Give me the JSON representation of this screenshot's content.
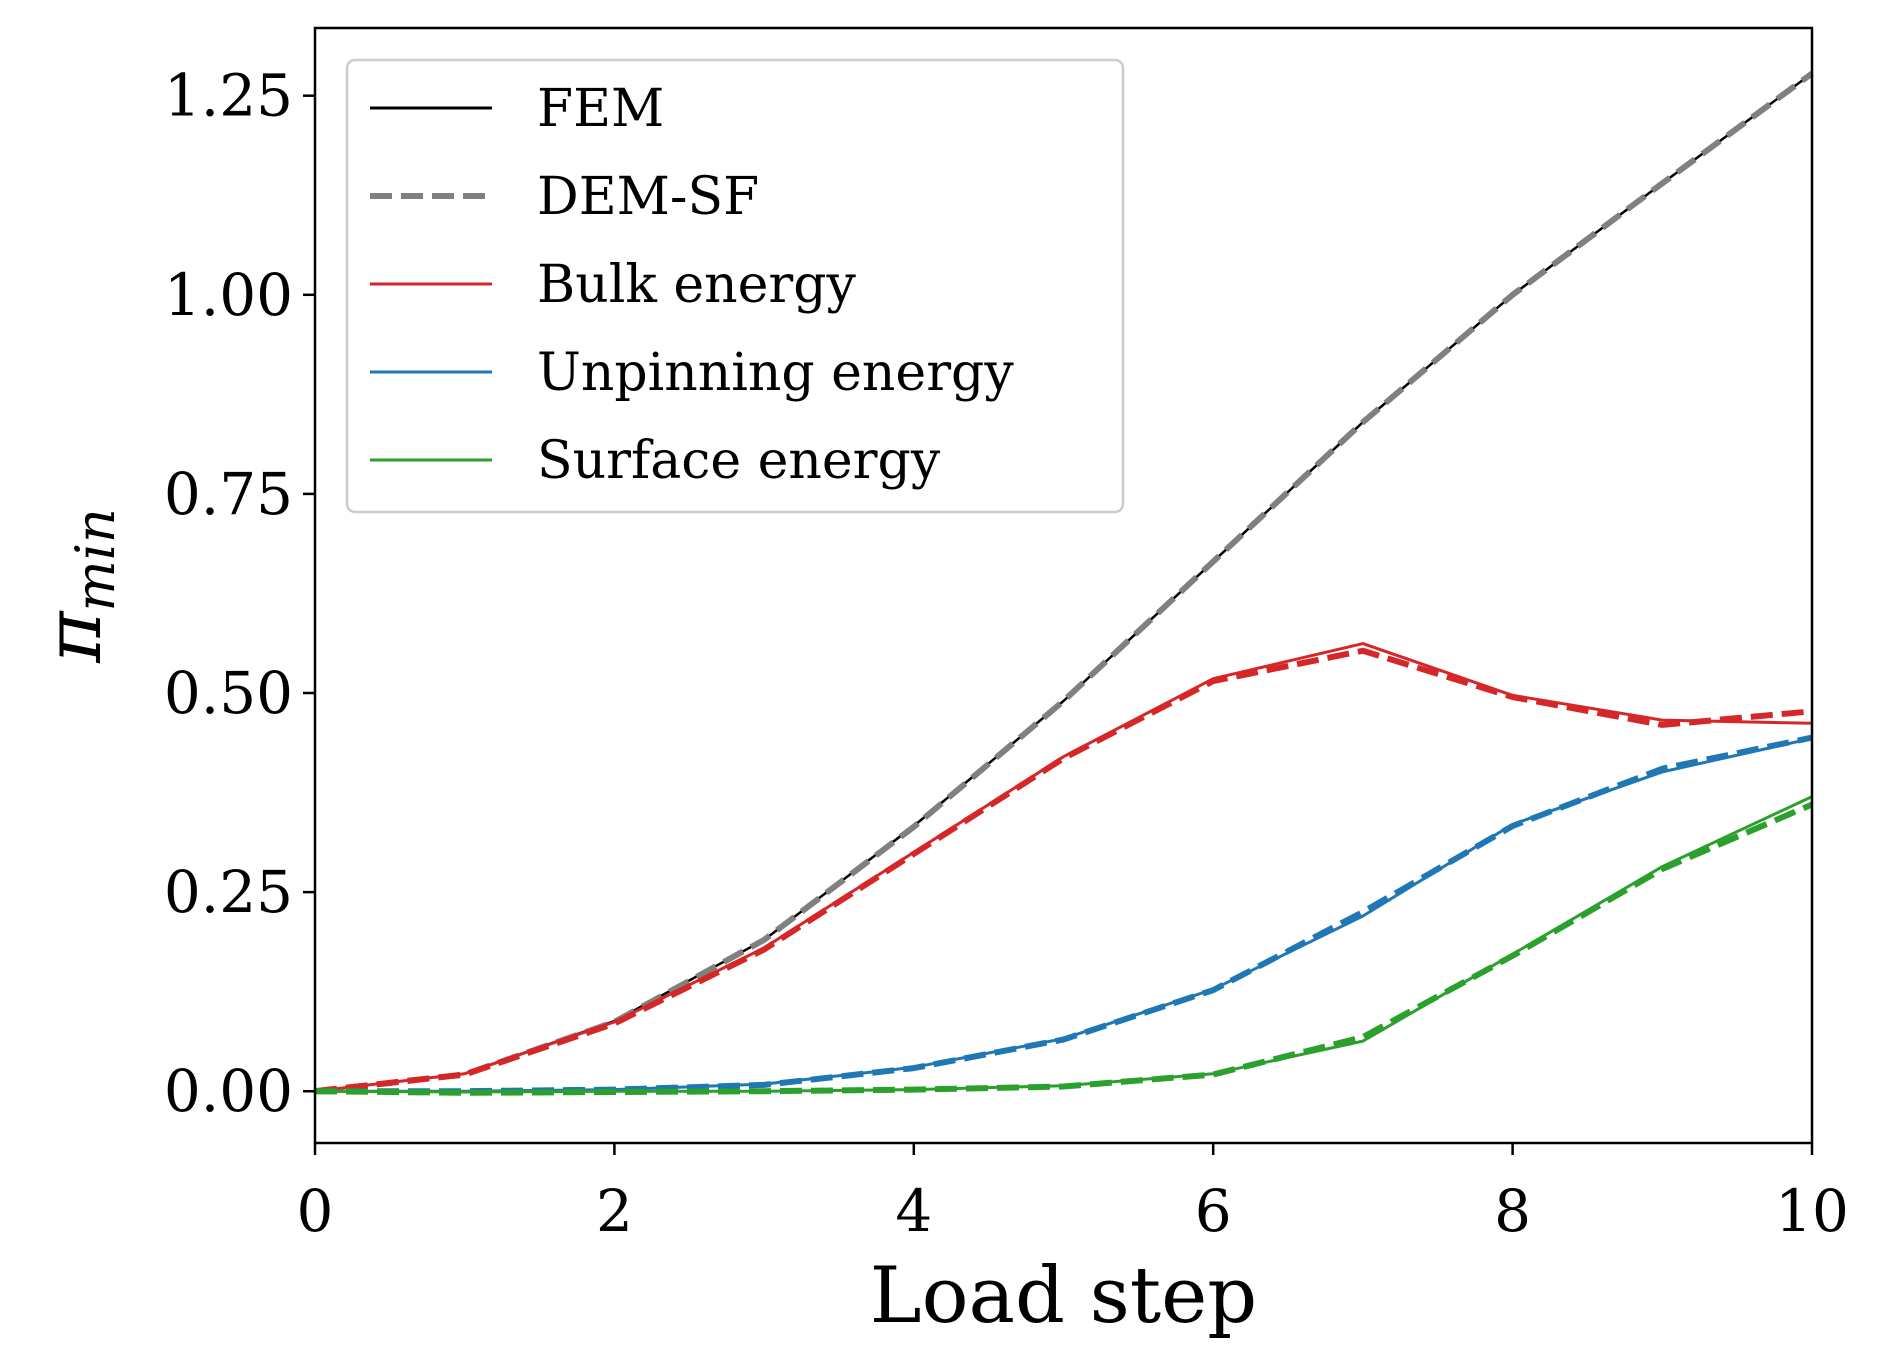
{
  "chart_data": {
    "type": "line",
    "xlabel": "Load step",
    "ylabel": "π",
    "ylabel_sub": "min",
    "xlim": [
      0,
      10
    ],
    "ylim": [
      -0.065,
      1.335
    ],
    "xticks": [
      0,
      2,
      4,
      6,
      8,
      10
    ],
    "xtick_labels": [
      "0",
      "2",
      "4",
      "6",
      "8",
      "10"
    ],
    "yticks": [
      0.0,
      0.25,
      0.5,
      0.75,
      1.0,
      1.25
    ],
    "ytick_labels": [
      "0.00",
      "0.25",
      "0.50",
      "0.75",
      "1.00",
      "1.25"
    ],
    "grid": false,
    "legend_position": "top-left",
    "legend": [
      {
        "label": "FEM",
        "color": "#000000",
        "style": "solid"
      },
      {
        "label": "DEM-SF",
        "color": "#808080",
        "style": "dashed"
      },
      {
        "label": "Bulk energy",
        "color": "#d62728",
        "style": "solid"
      },
      {
        "label": "Unpinning energy",
        "color": "#1f77b4",
        "style": "solid"
      },
      {
        "label": "Surface energy",
        "color": "#2ca02c",
        "style": "solid"
      }
    ],
    "x": [
      0,
      1,
      2,
      3,
      4,
      5,
      6,
      7,
      8,
      9,
      10
    ],
    "series": [
      {
        "name": "FEM total",
        "color": "#000000",
        "style": "solid",
        "width": 2.5,
        "values": [
          0.0,
          0.022,
          0.088,
          0.19,
          0.333,
          0.49,
          0.665,
          0.84,
          1.0,
          1.14,
          1.278
        ]
      },
      {
        "name": "DEM-SF total",
        "color": "#808080",
        "style": "dashed",
        "width": 6,
        "values": [
          0.0,
          0.021,
          0.087,
          0.19,
          0.332,
          0.49,
          0.665,
          0.84,
          1.0,
          1.14,
          1.278
        ]
      },
      {
        "name": "Bulk FEM",
        "color": "#d62728",
        "style": "solid",
        "width": 3,
        "values": [
          0.0,
          0.022,
          0.087,
          0.18,
          0.3,
          0.42,
          0.518,
          0.562,
          0.497,
          0.466,
          0.462
        ]
      },
      {
        "name": "Bulk DEM-SF",
        "color": "#d62728",
        "style": "dashed",
        "width": 6,
        "values": [
          0.0,
          0.021,
          0.085,
          0.178,
          0.298,
          0.418,
          0.515,
          0.553,
          0.495,
          0.46,
          0.477
        ]
      },
      {
        "name": "Unpinning FEM",
        "color": "#1f77b4",
        "style": "solid",
        "width": 3,
        "values": [
          0.0,
          0.0,
          0.002,
          0.009,
          0.03,
          0.066,
          0.128,
          0.22,
          0.335,
          0.401,
          0.443
        ]
      },
      {
        "name": "Unpinning DEM-SF",
        "color": "#1f77b4",
        "style": "dashed",
        "width": 6,
        "values": [
          0.0,
          0.0,
          0.002,
          0.008,
          0.029,
          0.065,
          0.127,
          0.225,
          0.333,
          0.405,
          0.444
        ]
      },
      {
        "name": "Surface FEM",
        "color": "#2ca02c",
        "style": "solid",
        "width": 3,
        "values": [
          0.0,
          -0.001,
          0.0,
          0.0,
          0.002,
          0.007,
          0.022,
          0.063,
          0.172,
          0.282,
          0.37
        ]
      },
      {
        "name": "Surface DEM-SF",
        "color": "#2ca02c",
        "style": "dashed",
        "width": 6,
        "values": [
          0.0,
          -0.002,
          -0.001,
          0.0,
          0.002,
          0.006,
          0.021,
          0.068,
          0.17,
          0.279,
          0.36
        ]
      }
    ]
  }
}
